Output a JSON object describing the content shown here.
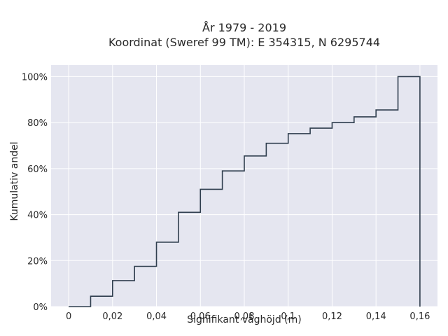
{
  "chart_data": {
    "type": "line",
    "step": true,
    "title_line1": "År 1979 - 2019",
    "title_line2": "Koordinat (Sweref 99 TM): E 354315, N 6295744",
    "xlabel": "Signifikant våghöjd (m)",
    "ylabel": "Kumulativ andel",
    "xlim": [
      -0.008,
      0.168
    ],
    "ylim": [
      0,
      1.05
    ],
    "x_ticks": [
      0,
      0.02,
      0.04,
      0.06,
      0.08,
      0.1,
      0.12,
      0.14,
      0.16
    ],
    "x_tick_labels": [
      "0",
      "0,02",
      "0,04",
      "0,06",
      "0,08",
      "0,1",
      "0,12",
      "0,14",
      "0,16"
    ],
    "y_ticks": [
      0,
      0.2,
      0.4,
      0.6,
      0.8,
      1.0
    ],
    "y_tick_labels": [
      "0%",
      "20%",
      "40%",
      "60%",
      "80%",
      "100%"
    ],
    "grid": true,
    "x": [
      0,
      0.01,
      0.02,
      0.03,
      0.04,
      0.05,
      0.06,
      0.07,
      0.08,
      0.09,
      0.1,
      0.11,
      0.12,
      0.13,
      0.14,
      0.15,
      0.16
    ],
    "y": [
      0.0,
      0.045,
      0.113,
      0.175,
      0.28,
      0.41,
      0.51,
      0.59,
      0.655,
      0.71,
      0.752,
      0.776,
      0.8,
      0.825,
      0.855,
      1.0,
      0.0
    ],
    "line_color": "#2f3e4e",
    "plot_bg": "#e5e6f0",
    "grid_color": "#ffffff"
  }
}
